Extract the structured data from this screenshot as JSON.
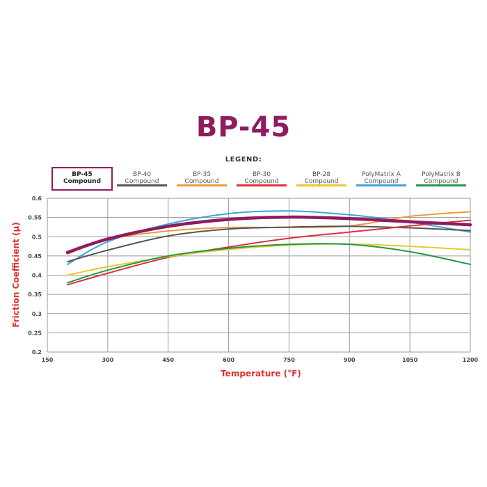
{
  "chart_data": {
    "type": "line",
    "title": "BP-45",
    "legend_title": "LEGEND:",
    "legend_placement": "top",
    "xlabel": "Temperature (°F)",
    "ylabel": "Friction Coefficient (μ)",
    "xlim": [
      150,
      1200
    ],
    "ylim": [
      0.2,
      0.6
    ],
    "xticks": [
      150,
      300,
      450,
      600,
      750,
      900,
      1050,
      1200
    ],
    "yticks": [
      0.2,
      0.25,
      0.3,
      0.35,
      0.4,
      0.45,
      0.5,
      0.55,
      0.6
    ],
    "grid": true,
    "colors": {
      "title": "#8e1c5e",
      "axis_label": "#e03030",
      "grid": "#9a9a9a"
    },
    "series": [
      {
        "name": "PolyMatrix A\nCompound",
        "color": "#3ca5dc",
        "width": 2,
        "x": [
          200,
          300,
          450,
          600,
          750,
          900,
          1050,
          1200
        ],
        "y": [
          0.428,
          0.487,
          0.533,
          0.56,
          0.567,
          0.557,
          0.538,
          0.512
        ]
      },
      {
        "name": "BP-35\nCompound",
        "color": "#ef9a3a",
        "width": 2,
        "x": [
          200,
          300,
          450,
          600,
          750,
          900,
          1050,
          1200
        ],
        "y": [
          0.455,
          0.493,
          0.515,
          0.524,
          0.524,
          0.528,
          0.553,
          0.565
        ]
      },
      {
        "name": "BP-40\nCompound",
        "color": "#555555",
        "width": 2,
        "x": [
          200,
          300,
          450,
          600,
          750,
          900,
          1050,
          1200
        ],
        "y": [
          0.435,
          0.465,
          0.502,
          0.52,
          0.525,
          0.527,
          0.523,
          0.516
        ]
      },
      {
        "name": "BP-30\nCompound",
        "color": "#e0303a",
        "width": 2,
        "x": [
          200,
          300,
          450,
          600,
          750,
          900,
          1050,
          1200
        ],
        "y": [
          0.375,
          0.405,
          0.446,
          0.473,
          0.496,
          0.512,
          0.528,
          0.543
        ]
      },
      {
        "name": "BP-28\nCompound",
        "color": "#e6c830",
        "width": 2,
        "x": [
          200,
          300,
          450,
          600,
          750,
          900,
          1050,
          1200
        ],
        "y": [
          0.4,
          0.422,
          0.448,
          0.467,
          0.478,
          0.481,
          0.475,
          0.466
        ]
      },
      {
        "name": "PolyMatrix B\nCompound",
        "color": "#1e9a4a",
        "width": 2,
        "x": [
          200,
          300,
          450,
          600,
          750,
          900,
          1050,
          1200
        ],
        "y": [
          0.38,
          0.413,
          0.45,
          0.47,
          0.48,
          0.48,
          0.461,
          0.428
        ]
      },
      {
        "name": "BP-45\nCompound",
        "color": "#8e1c5e",
        "width": 4.5,
        "highlight": true,
        "x": [
          200,
          300,
          450,
          600,
          750,
          900,
          1050,
          1200
        ],
        "y": [
          0.459,
          0.494,
          0.527,
          0.545,
          0.551,
          0.547,
          0.539,
          0.531
        ]
      }
    ],
    "legend_order": [
      6,
      2,
      1,
      3,
      4,
      0,
      5
    ]
  }
}
